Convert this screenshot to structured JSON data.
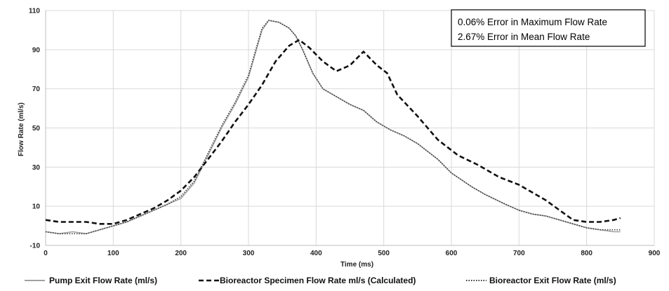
{
  "chart_data": {
    "type": "line",
    "title": "",
    "xlabel": "Time (ms)",
    "ylabel": "Flow Rate (ml/s)",
    "xlim": [
      0,
      900
    ],
    "ylim": [
      -10,
      110
    ],
    "x_ticks": [
      "0",
      "100",
      "200",
      "300",
      "400",
      "500",
      "600",
      "700",
      "800",
      "900"
    ],
    "y_ticks": [
      "-10",
      "10",
      "30",
      "50",
      "70",
      "90",
      "110"
    ],
    "grid": true,
    "legend": "bottom",
    "annotations": [
      "0.06% Error in Maximum Flow Rate",
      "2.67% Error in Mean Flow Rate"
    ],
    "series": [
      {
        "name": "Pump Exit Flow Rate (ml/s)",
        "style": "solid",
        "color": "#a0a0a0",
        "points": [
          [
            0,
            -3
          ],
          [
            20,
            -4
          ],
          [
            40,
            -3
          ],
          [
            60,
            -4
          ],
          [
            80,
            -2
          ],
          [
            100,
            0
          ],
          [
            120,
            2
          ],
          [
            140,
            5
          ],
          [
            160,
            8
          ],
          [
            180,
            11
          ],
          [
            200,
            14
          ],
          [
            220,
            22
          ],
          [
            240,
            36
          ],
          [
            260,
            50
          ],
          [
            280,
            62
          ],
          [
            300,
            76
          ],
          [
            310,
            88
          ],
          [
            320,
            100
          ],
          [
            330,
            105
          ],
          [
            345,
            104
          ],
          [
            360,
            101
          ],
          [
            370,
            97
          ],
          [
            380,
            90
          ],
          [
            395,
            78
          ],
          [
            410,
            70
          ],
          [
            430,
            66
          ],
          [
            450,
            62
          ],
          [
            470,
            59
          ],
          [
            490,
            53
          ],
          [
            510,
            49
          ],
          [
            530,
            46
          ],
          [
            550,
            42
          ],
          [
            580,
            34
          ],
          [
            600,
            27
          ],
          [
            630,
            20
          ],
          [
            650,
            16
          ],
          [
            680,
            11
          ],
          [
            700,
            8
          ],
          [
            720,
            6
          ],
          [
            740,
            5
          ],
          [
            760,
            3
          ],
          [
            780,
            1
          ],
          [
            800,
            -1
          ],
          [
            820,
            -2
          ],
          [
            840,
            -3
          ],
          [
            850,
            -3
          ]
        ]
      },
      {
        "name": "Bioreactor Specimen Flow Rate ml/s (Calculated)",
        "style": "dashed",
        "color": "#111111",
        "points": [
          [
            0,
            3
          ],
          [
            20,
            2
          ],
          [
            40,
            2
          ],
          [
            60,
            2
          ],
          [
            80,
            1
          ],
          [
            100,
            1
          ],
          [
            120,
            3
          ],
          [
            140,
            6
          ],
          [
            160,
            9
          ],
          [
            180,
            13
          ],
          [
            200,
            18
          ],
          [
            220,
            25
          ],
          [
            240,
            34
          ],
          [
            260,
            43
          ],
          [
            280,
            53
          ],
          [
            300,
            62
          ],
          [
            320,
            72
          ],
          [
            340,
            84
          ],
          [
            360,
            92
          ],
          [
            375,
            95
          ],
          [
            390,
            91
          ],
          [
            410,
            84
          ],
          [
            430,
            79
          ],
          [
            450,
            82
          ],
          [
            470,
            89
          ],
          [
            490,
            82
          ],
          [
            505,
            78
          ],
          [
            520,
            67
          ],
          [
            550,
            56
          ],
          [
            580,
            44
          ],
          [
            610,
            36
          ],
          [
            640,
            31
          ],
          [
            670,
            25
          ],
          [
            700,
            21
          ],
          [
            720,
            17
          ],
          [
            740,
            13
          ],
          [
            760,
            8
          ],
          [
            780,
            3
          ],
          [
            800,
            2
          ],
          [
            820,
            2
          ],
          [
            840,
            3
          ],
          [
            850,
            4
          ]
        ]
      },
      {
        "name": "Bioreactor Exit Flow Rate (ml/s)",
        "style": "dotted",
        "color": "#333333",
        "points": [
          [
            0,
            -3
          ],
          [
            20,
            -4
          ],
          [
            40,
            -4
          ],
          [
            60,
            -4
          ],
          [
            80,
            -2
          ],
          [
            100,
            0
          ],
          [
            120,
            2
          ],
          [
            140,
            5
          ],
          [
            160,
            8
          ],
          [
            180,
            11
          ],
          [
            200,
            15
          ],
          [
            220,
            23
          ],
          [
            240,
            37
          ],
          [
            260,
            51
          ],
          [
            280,
            63
          ],
          [
            300,
            77
          ],
          [
            310,
            89
          ],
          [
            320,
            101
          ],
          [
            330,
            105
          ],
          [
            345,
            104
          ],
          [
            360,
            101
          ],
          [
            370,
            97
          ],
          [
            380,
            90
          ],
          [
            395,
            78
          ],
          [
            410,
            70
          ],
          [
            430,
            66
          ],
          [
            450,
            62
          ],
          [
            470,
            59
          ],
          [
            490,
            53
          ],
          [
            510,
            49
          ],
          [
            530,
            46
          ],
          [
            550,
            42
          ],
          [
            580,
            34
          ],
          [
            600,
            27
          ],
          [
            630,
            20
          ],
          [
            650,
            16
          ],
          [
            680,
            11
          ],
          [
            700,
            8
          ],
          [
            720,
            6
          ],
          [
            740,
            5
          ],
          [
            760,
            3
          ],
          [
            780,
            1
          ],
          [
            800,
            -1
          ],
          [
            820,
            -2
          ],
          [
            840,
            -2
          ],
          [
            850,
            -2
          ]
        ]
      }
    ]
  }
}
